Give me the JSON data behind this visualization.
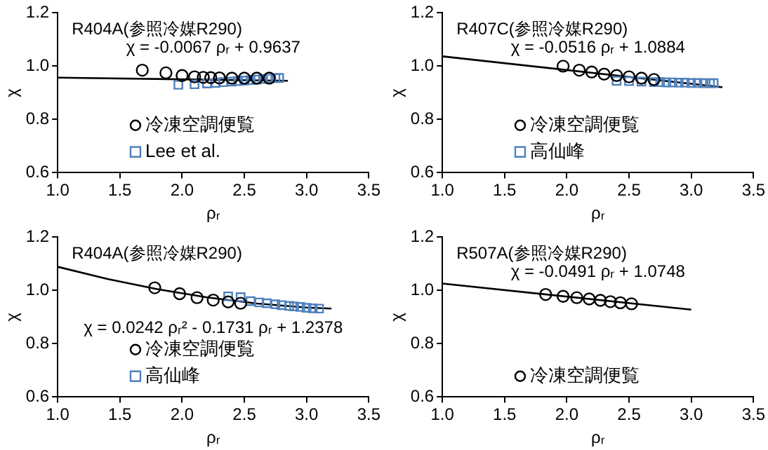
{
  "chart_data": [
    {
      "type": "scatter",
      "title": "R404A(参照冷媒R290)",
      "xlabel": "ρᵣ",
      "ylabel": "χ",
      "annotations": [
        "χ = -0.0067 ρᵣ + 0.9637"
      ],
      "xlim": [
        1.0,
        3.5
      ],
      "xticks": [
        {
          "value": 1,
          "label": "1.0"
        },
        {
          "value": 1.5,
          "label": "1.5"
        },
        {
          "value": 2,
          "label": "2.0"
        },
        {
          "value": 2.5,
          "label": "2.5"
        },
        {
          "value": 3,
          "label": "3.0"
        },
        {
          "value": 3.5,
          "label": "3.5"
        }
      ],
      "ylim": [
        0.6,
        1.2
      ],
      "yticks": [
        {
          "value": 0.6,
          "label": "0.6"
        },
        {
          "value": 0.8,
          "label": "0.8"
        },
        {
          "value": 1,
          "label": "1.0"
        },
        {
          "value": 1.2,
          "label": "1.2"
        }
      ],
      "legend": "bottom left",
      "grid": false,
      "series": [
        {
          "name": "冷凍空調便覧",
          "color": "#000000",
          "marker": "circle",
          "x": [
            1.68,
            1.87,
            2.0,
            2.1,
            2.17,
            2.23,
            2.3,
            2.4,
            2.5,
            2.6,
            2.7
          ],
          "values": [
            0.985,
            0.975,
            0.965,
            0.96,
            0.958,
            0.957,
            0.956,
            0.955,
            0.955,
            0.955,
            0.955
          ]
        },
        {
          "name": "Lee et al.",
          "color": "#4f81bd",
          "marker": "square",
          "x": [
            1.97,
            2.1,
            2.2,
            2.27,
            2.33,
            2.4,
            2.45,
            2.5,
            2.55,
            2.6,
            2.65,
            2.7,
            2.75,
            2.78
          ],
          "values": [
            0.93,
            0.932,
            0.935,
            0.937,
            0.94,
            0.942,
            0.944,
            0.946,
            0.948,
            0.95,
            0.952,
            0.953,
            0.955,
            0.956
          ]
        },
        {
          "type": "line",
          "color": "#000000",
          "marker": "none",
          "x": [
            1.0,
            2.85
          ],
          "values": [
            0.957,
            0.945
          ]
        }
      ]
    },
    {
      "type": "scatter",
      "title": "R407C(参照冷媒R290)",
      "xlabel": "ρᵣ",
      "ylabel": "χ",
      "annotations": [
        "χ = -0.0516 ρᵣ + 1.0884"
      ],
      "xlim": [
        1.0,
        3.5
      ],
      "xticks": [
        {
          "value": 1,
          "label": "1.0"
        },
        {
          "value": 1.5,
          "label": "1.5"
        },
        {
          "value": 2,
          "label": "2.0"
        },
        {
          "value": 2.5,
          "label": "2.5"
        },
        {
          "value": 3,
          "label": "3.0"
        },
        {
          "value": 3.5,
          "label": "3.5"
        }
      ],
      "ylim": [
        0.6,
        1.2
      ],
      "yticks": [
        {
          "value": 0.6,
          "label": "0.6"
        },
        {
          "value": 0.8,
          "label": "0.8"
        },
        {
          "value": 1,
          "label": "1.0"
        },
        {
          "value": 1.2,
          "label": "1.2"
        }
      ],
      "legend": "bottom left",
      "grid": false,
      "series": [
        {
          "name": "冷凍空調便覧",
          "color": "#000000",
          "marker": "circle",
          "x": [
            1.97,
            2.1,
            2.2,
            2.3,
            2.4,
            2.5,
            2.6,
            2.7
          ],
          "values": [
            1.0,
            0.985,
            0.978,
            0.97,
            0.965,
            0.96,
            0.955,
            0.95
          ]
        },
        {
          "name": "高仙峰",
          "color": "#4f81bd",
          "marker": "square",
          "x": [
            2.4,
            2.5,
            2.6,
            2.7,
            2.75,
            2.8,
            2.85,
            2.9,
            2.95,
            3.0,
            3.05,
            3.1,
            3.15,
            3.18
          ],
          "values": [
            0.945,
            0.944,
            0.942,
            0.94,
            0.94,
            0.939,
            0.939,
            0.938,
            0.938,
            0.937,
            0.937,
            0.936,
            0.936,
            0.936
          ]
        },
        {
          "type": "line",
          "color": "#000000",
          "marker": "none",
          "x": [
            1.0,
            3.25
          ],
          "values": [
            1.037,
            0.921
          ]
        }
      ]
    },
    {
      "type": "scatter",
      "title": "R404A(参照冷媒R290)",
      "xlabel": "ρᵣ",
      "ylabel": "χ",
      "annotations": [
        "χ = 0.0242 ρᵣ² - 0.1731 ρᵣ + 1.2378"
      ],
      "xlim": [
        1.0,
        3.5
      ],
      "xticks": [
        {
          "value": 1,
          "label": "1.0"
        },
        {
          "value": 1.5,
          "label": "1.5"
        },
        {
          "value": 2,
          "label": "2.0"
        },
        {
          "value": 2.5,
          "label": "2.5"
        },
        {
          "value": 3,
          "label": "3.0"
        },
        {
          "value": 3.5,
          "label": "3.5"
        }
      ],
      "ylim": [
        0.6,
        1.2
      ],
      "yticks": [
        {
          "value": 0.6,
          "label": "0.6"
        },
        {
          "value": 0.8,
          "label": "0.8"
        },
        {
          "value": 1,
          "label": "1.0"
        },
        {
          "value": 1.2,
          "label": "1.2"
        }
      ],
      "legend": "bottom left",
      "grid": false,
      "series": [
        {
          "name": "冷凍空調便覧",
          "color": "#000000",
          "marker": "circle",
          "x": [
            1.78,
            1.98,
            2.12,
            2.25,
            2.37,
            2.47
          ],
          "values": [
            1.01,
            0.988,
            0.973,
            0.964,
            0.957,
            0.952
          ]
        },
        {
          "name": "高仙峰",
          "color": "#4f81bd",
          "marker": "square",
          "x": [
            2.37,
            2.47,
            2.55,
            2.62,
            2.68,
            2.75,
            2.8,
            2.86,
            2.9,
            2.95,
            3.0,
            3.05,
            3.1
          ],
          "values": [
            0.978,
            0.975,
            0.96,
            0.955,
            0.952,
            0.948,
            0.945,
            0.942,
            0.94,
            0.938,
            0.935,
            0.933,
            0.932
          ]
        },
        {
          "type": "line",
          "color": "#000000",
          "marker": "none",
          "x": [
            1.0,
            1.4,
            1.8,
            2.2,
            2.6,
            3.0,
            3.2
          ],
          "values": [
            1.089,
            1.043,
            1.005,
            0.974,
            0.951,
            0.936,
            0.932
          ]
        }
      ]
    },
    {
      "type": "scatter",
      "title": "R507A(参照冷媒R290)",
      "xlabel": "ρᵣ",
      "ylabel": "χ",
      "annotations": [
        "χ = -0.0491 ρᵣ + 1.0748"
      ],
      "xlim": [
        1.0,
        3.5
      ],
      "xticks": [
        {
          "value": 1,
          "label": "1.0"
        },
        {
          "value": 1.5,
          "label": "1.5"
        },
        {
          "value": 2,
          "label": "2.0"
        },
        {
          "value": 2.5,
          "label": "2.5"
        },
        {
          "value": 3,
          "label": "3.0"
        },
        {
          "value": 3.5,
          "label": "3.5"
        }
      ],
      "ylim": [
        0.6,
        1.2
      ],
      "yticks": [
        {
          "value": 0.6,
          "label": "0.6"
        },
        {
          "value": 0.8,
          "label": "0.8"
        },
        {
          "value": 1,
          "label": "1.0"
        },
        {
          "value": 1.2,
          "label": "1.2"
        }
      ],
      "legend": "bottom left",
      "grid": false,
      "series": [
        {
          "name": "冷凍空調便覧",
          "color": "#000000",
          "marker": "circle",
          "x": [
            1.83,
            1.97,
            2.08,
            2.18,
            2.27,
            2.35,
            2.43,
            2.52
          ],
          "values": [
            0.985,
            0.978,
            0.973,
            0.968,
            0.963,
            0.958,
            0.954,
            0.95
          ]
        },
        {
          "type": "line",
          "color": "#000000",
          "marker": "none",
          "x": [
            1.0,
            3.0
          ],
          "values": [
            1.026,
            0.928
          ]
        }
      ]
    }
  ]
}
